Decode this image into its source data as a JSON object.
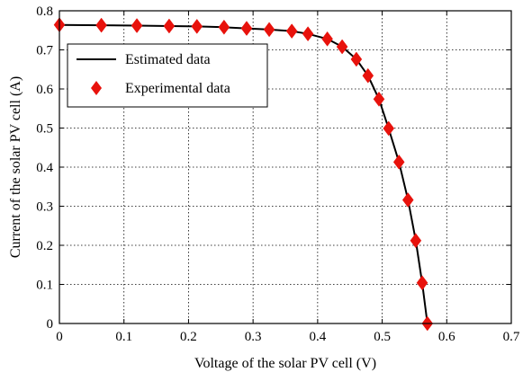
{
  "chart_data": {
    "type": "line",
    "title": "",
    "xlabel": "Voltage of the solar PV cell (V)",
    "ylabel": "Current of the solar PV cell (A)",
    "xlim": [
      0,
      0.7
    ],
    "ylim": [
      0,
      0.8
    ],
    "x_ticks": [
      "0",
      "0.1",
      "0.2",
      "0.3",
      "0.4",
      "0.5",
      "0.6",
      "0.7"
    ],
    "y_ticks": [
      "0",
      "0.1",
      "0.2",
      "0.3",
      "0.4",
      "0.5",
      "0.6",
      "0.7",
      "0.8"
    ],
    "grid": true,
    "grid_style": "dotted",
    "legend_position": "top-left",
    "series": [
      {
        "name": "Estimated data",
        "style": "line",
        "color": "#000000",
        "x": [
          0.0,
          0.065,
          0.12,
          0.17,
          0.213,
          0.255,
          0.29,
          0.325,
          0.36,
          0.385,
          0.415,
          0.438,
          0.46,
          0.478,
          0.495,
          0.51,
          0.526,
          0.54,
          0.552,
          0.562,
          0.57
        ],
        "y": [
          0.764,
          0.763,
          0.762,
          0.761,
          0.76,
          0.758,
          0.755,
          0.752,
          0.748,
          0.741,
          0.728,
          0.708,
          0.676,
          0.634,
          0.574,
          0.499,
          0.413,
          0.316,
          0.212,
          0.104,
          0.0
        ]
      },
      {
        "name": "Experimental data",
        "style": "markers",
        "marker": "diamond",
        "color": "#e8120c",
        "x": [
          0.0,
          0.065,
          0.12,
          0.17,
          0.213,
          0.255,
          0.29,
          0.325,
          0.36,
          0.385,
          0.415,
          0.438,
          0.46,
          0.478,
          0.495,
          0.51,
          0.526,
          0.54,
          0.552,
          0.562,
          0.57
        ],
        "y": [
          0.764,
          0.763,
          0.762,
          0.761,
          0.76,
          0.758,
          0.755,
          0.752,
          0.748,
          0.741,
          0.728,
          0.708,
          0.676,
          0.634,
          0.574,
          0.499,
          0.413,
          0.316,
          0.212,
          0.104,
          0.0
        ]
      }
    ]
  }
}
